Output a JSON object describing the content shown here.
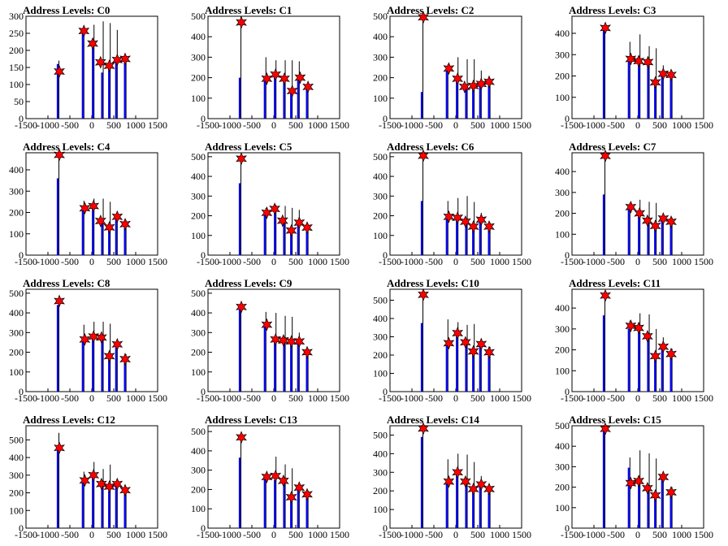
{
  "colors": {
    "total": "#000000",
    "selected": "#0000ff",
    "marker": "#ff0000",
    "frame": "#000000"
  },
  "xlim": [
    -1500,
    1500
  ],
  "x_ticks": [
    "-1500",
    "-1000",
    "-500",
    "0",
    "500",
    "1000",
    "1500"
  ],
  "chart_data": [
    {
      "type": "bar",
      "title": "Address Levels: C0",
      "ylim": [
        0,
        300
      ],
      "yticks": [
        0,
        50,
        100,
        150,
        200,
        250,
        300
      ],
      "x": [
        -750,
        -180,
        50,
        260,
        420,
        580,
        780
      ],
      "total": [
        170,
        270,
        275,
        285,
        280,
        260,
        180
      ],
      "selected": [
        160,
        260,
        210,
        135,
        150,
        175,
        170
      ],
      "peaks": [
        {
          "x": -740,
          "y": 138
        },
        {
          "x": -180,
          "y": 257
        },
        {
          "x": 20,
          "y": 220
        },
        {
          "x": 200,
          "y": 165
        },
        {
          "x": 400,
          "y": 155
        },
        {
          "x": 580,
          "y": 172
        },
        {
          "x": 760,
          "y": 175
        }
      ]
    },
    {
      "type": "bar",
      "title": "Address Levels: C1",
      "ylim": [
        0,
        500
      ],
      "yticks": [
        0,
        100,
        200,
        300,
        400,
        500
      ],
      "x": [
        -750,
        -180,
        50,
        260,
        420,
        580,
        780
      ],
      "total": [
        500,
        300,
        285,
        285,
        285,
        280,
        160
      ],
      "selected": [
        200,
        185,
        210,
        185,
        140,
        190,
        150
      ],
      "peaks": [
        {
          "x": -740,
          "y": 470
        },
        {
          "x": -160,
          "y": 195
        },
        {
          "x": 40,
          "y": 215
        },
        {
          "x": 240,
          "y": 195
        },
        {
          "x": 420,
          "y": 135
        },
        {
          "x": 600,
          "y": 200
        },
        {
          "x": 780,
          "y": 155
        }
      ]
    },
    {
      "type": "bar",
      "title": "Address Levels: C2",
      "ylim": [
        0,
        500
      ],
      "yticks": [
        0,
        100,
        200,
        300,
        400,
        500
      ],
      "x": [
        -750,
        -180,
        50,
        260,
        420,
        580,
        780
      ],
      "total": [
        510,
        265,
        300,
        290,
        290,
        235,
        180
      ],
      "selected": [
        130,
        240,
        190,
        150,
        155,
        170,
        175
      ],
      "peaks": [
        {
          "x": -740,
          "y": 495
        },
        {
          "x": -160,
          "y": 245
        },
        {
          "x": 40,
          "y": 195
        },
        {
          "x": 200,
          "y": 155
        },
        {
          "x": 400,
          "y": 160
        },
        {
          "x": 580,
          "y": 170
        },
        {
          "x": 760,
          "y": 180
        }
      ]
    },
    {
      "type": "bar",
      "title": "Address Levels: C3",
      "ylim": [
        0,
        480
      ],
      "yticks": [
        0,
        100,
        200,
        300,
        400
      ],
      "x": [
        -750,
        -180,
        50,
        260,
        420,
        580,
        780
      ],
      "total": [
        440,
        360,
        395,
        340,
        330,
        250,
        225
      ],
      "selected": [
        420,
        270,
        265,
        265,
        165,
        205,
        200
      ],
      "peaks": [
        {
          "x": -740,
          "y": 425
        },
        {
          "x": -160,
          "y": 280
        },
        {
          "x": 20,
          "y": 270
        },
        {
          "x": 230,
          "y": 265
        },
        {
          "x": 400,
          "y": 170
        },
        {
          "x": 580,
          "y": 210
        },
        {
          "x": 760,
          "y": 205
        }
      ]
    },
    {
      "type": "bar",
      "title": "Address Levels: C4",
      "ylim": [
        0,
        480
      ],
      "yticks": [
        0,
        100,
        200,
        300,
        400
      ],
      "x": [
        -750,
        -180,
        50,
        260,
        420,
        580,
        780
      ],
      "total": [
        480,
        255,
        265,
        265,
        250,
        205,
        165
      ],
      "selected": [
        360,
        220,
        225,
        155,
        130,
        175,
        140
      ],
      "peaks": [
        {
          "x": -740,
          "y": 470
        },
        {
          "x": -160,
          "y": 220
        },
        {
          "x": 40,
          "y": 230
        },
        {
          "x": 200,
          "y": 160
        },
        {
          "x": 400,
          "y": 130
        },
        {
          "x": 580,
          "y": 180
        },
        {
          "x": 760,
          "y": 145
        }
      ]
    },
    {
      "type": "bar",
      "title": "Address Levels: C5",
      "ylim": [
        0,
        520
      ],
      "yticks": [
        0,
        100,
        200,
        300,
        400,
        500
      ],
      "x": [
        -750,
        -180,
        50,
        260,
        420,
        580,
        780
      ],
      "total": [
        500,
        240,
        255,
        250,
        240,
        230,
        160
      ],
      "selected": [
        365,
        210,
        225,
        170,
        130,
        165,
        140
      ],
      "peaks": [
        {
          "x": -740,
          "y": 490
        },
        {
          "x": -160,
          "y": 215
        },
        {
          "x": 20,
          "y": 235
        },
        {
          "x": 200,
          "y": 175
        },
        {
          "x": 400,
          "y": 125
        },
        {
          "x": 580,
          "y": 165
        },
        {
          "x": 760,
          "y": 140
        }
      ]
    },
    {
      "type": "bar",
      "title": "Address Levels: C6",
      "ylim": [
        0,
        520
      ],
      "yticks": [
        0,
        100,
        200,
        300,
        400,
        500
      ],
      "x": [
        -750,
        -180,
        50,
        260,
        420,
        580,
        780
      ],
      "total": [
        520,
        275,
        290,
        300,
        270,
        215,
        165
      ],
      "selected": [
        275,
        190,
        185,
        170,
        140,
        175,
        140
      ],
      "peaks": [
        {
          "x": -740,
          "y": 505
        },
        {
          "x": -160,
          "y": 195
        },
        {
          "x": 40,
          "y": 190
        },
        {
          "x": 220,
          "y": 170
        },
        {
          "x": 400,
          "y": 145
        },
        {
          "x": 580,
          "y": 180
        },
        {
          "x": 760,
          "y": 145
        }
      ]
    },
    {
      "type": "bar",
      "title": "Address Levels: C7",
      "ylim": [
        0,
        490
      ],
      "yticks": [
        0,
        100,
        200,
        300,
        400
      ],
      "x": [
        -750,
        -180,
        50,
        260,
        420,
        580,
        780
      ],
      "total": [
        470,
        250,
        265,
        255,
        250,
        190,
        180
      ],
      "selected": [
        290,
        220,
        200,
        165,
        140,
        175,
        155
      ],
      "peaks": [
        {
          "x": -740,
          "y": 475
        },
        {
          "x": -160,
          "y": 230
        },
        {
          "x": 40,
          "y": 200
        },
        {
          "x": 220,
          "y": 165
        },
        {
          "x": 400,
          "y": 140
        },
        {
          "x": 580,
          "y": 175
        },
        {
          "x": 760,
          "y": 160
        }
      ]
    },
    {
      "type": "bar",
      "title": "Address Levels: C8",
      "ylim": [
        0,
        520
      ],
      "yticks": [
        0,
        100,
        200,
        300,
        400,
        500
      ],
      "x": [
        -750,
        -180,
        50,
        260,
        420,
        580,
        780
      ],
      "total": [
        480,
        340,
        355,
        355,
        345,
        250,
        190
      ],
      "selected": [
        440,
        255,
        275,
        270,
        170,
        225,
        165
      ],
      "peaks": [
        {
          "x": -740,
          "y": 460
        },
        {
          "x": -160,
          "y": 265
        },
        {
          "x": 40,
          "y": 280
        },
        {
          "x": 220,
          "y": 275
        },
        {
          "x": 400,
          "y": 180
        },
        {
          "x": 580,
          "y": 240
        },
        {
          "x": 760,
          "y": 165
        }
      ]
    },
    {
      "type": "bar",
      "title": "Address Levels: C9",
      "ylim": [
        0,
        520
      ],
      "yticks": [
        0,
        100,
        200,
        300,
        400,
        500
      ],
      "x": [
        -750,
        -180,
        50,
        260,
        420,
        580,
        780
      ],
      "total": [
        450,
        405,
        400,
        385,
        380,
        300,
        220
      ],
      "selected": [
        420,
        330,
        265,
        250,
        250,
        250,
        190
      ],
      "peaks": [
        {
          "x": -740,
          "y": 430
        },
        {
          "x": -160,
          "y": 340
        },
        {
          "x": 40,
          "y": 265
        },
        {
          "x": 220,
          "y": 260
        },
        {
          "x": 400,
          "y": 255
        },
        {
          "x": 580,
          "y": 255
        },
        {
          "x": 760,
          "y": 200
        }
      ]
    },
    {
      "type": "bar",
      "title": "Address Levels: C10",
      "ylim": [
        0,
        560
      ],
      "yticks": [
        0,
        100,
        200,
        300,
        400,
        500
      ],
      "x": [
        -750,
        -180,
        50,
        260,
        420,
        580,
        780
      ],
      "total": [
        520,
        395,
        380,
        365,
        370,
        280,
        245
      ],
      "selected": [
        375,
        255,
        310,
        275,
        205,
        260,
        215
      ],
      "peaks": [
        {
          "x": -740,
          "y": 530
        },
        {
          "x": -160,
          "y": 265
        },
        {
          "x": 40,
          "y": 320
        },
        {
          "x": 220,
          "y": 270
        },
        {
          "x": 400,
          "y": 220
        },
        {
          "x": 580,
          "y": 260
        },
        {
          "x": 760,
          "y": 215
        }
      ]
    },
    {
      "type": "bar",
      "title": "Address Levels: C11",
      "ylim": [
        0,
        490
      ],
      "yticks": [
        0,
        100,
        200,
        300,
        400
      ],
      "x": [
        -750,
        -180,
        50,
        260,
        420,
        580,
        780
      ],
      "total": [
        480,
        340,
        375,
        370,
        300,
        260,
        205
      ],
      "selected": [
        365,
        300,
        290,
        255,
        170,
        215,
        175
      ],
      "peaks": [
        {
          "x": -740,
          "y": 460
        },
        {
          "x": -160,
          "y": 315
        },
        {
          "x": 20,
          "y": 305
        },
        {
          "x": 220,
          "y": 265
        },
        {
          "x": 400,
          "y": 170
        },
        {
          "x": 580,
          "y": 215
        },
        {
          "x": 760,
          "y": 180
        }
      ]
    },
    {
      "type": "bar",
      "title": "Address Levels: C12",
      "ylim": [
        0,
        580
      ],
      "yticks": [
        0,
        100,
        200,
        300,
        400,
        500
      ],
      "x": [
        -750,
        -180,
        50,
        260,
        420,
        580,
        780
      ],
      "total": [
        540,
        320,
        375,
        335,
        360,
        270,
        220
      ],
      "selected": [
        465,
        265,
        290,
        245,
        210,
        250,
        210
      ],
      "peaks": [
        {
          "x": -740,
          "y": 455
        },
        {
          "x": -160,
          "y": 270
        },
        {
          "x": 40,
          "y": 300
        },
        {
          "x": 220,
          "y": 250
        },
        {
          "x": 400,
          "y": 235
        },
        {
          "x": 580,
          "y": 250
        },
        {
          "x": 760,
          "y": 215
        }
      ]
    },
    {
      "type": "bar",
      "title": "Address Levels: C13",
      "ylim": [
        0,
        530
      ],
      "yticks": [
        0,
        100,
        200,
        300,
        400,
        500
      ],
      "x": [
        -750,
        -180,
        50,
        260,
        420,
        580,
        780
      ],
      "total": [
        480,
        285,
        370,
        330,
        310,
        230,
        195
      ],
      "selected": [
        365,
        265,
        250,
        240,
        160,
        215,
        170
      ],
      "peaks": [
        {
          "x": -740,
          "y": 470
        },
        {
          "x": -160,
          "y": 265
        },
        {
          "x": 40,
          "y": 270
        },
        {
          "x": 220,
          "y": 245
        },
        {
          "x": 400,
          "y": 160
        },
        {
          "x": 580,
          "y": 210
        },
        {
          "x": 760,
          "y": 175
        }
      ]
    },
    {
      "type": "bar",
      "title": "Address Levels: C14",
      "ylim": [
        0,
        550
      ],
      "yticks": [
        0,
        100,
        200,
        300,
        400,
        500
      ],
      "x": [
        -750,
        -180,
        50,
        260,
        420,
        580,
        780
      ],
      "total": [
        530,
        370,
        400,
        395,
        355,
        280,
        210
      ],
      "selected": [
        490,
        245,
        290,
        255,
        215,
        235,
        210
      ],
      "peaks": [
        {
          "x": -740,
          "y": 535
        },
        {
          "x": -160,
          "y": 250
        },
        {
          "x": 40,
          "y": 300
        },
        {
          "x": 220,
          "y": 250
        },
        {
          "x": 400,
          "y": 210
        },
        {
          "x": 580,
          "y": 235
        },
        {
          "x": 760,
          "y": 210
        }
      ]
    },
    {
      "type": "bar",
      "title": "Address Levels: C15",
      "ylim": [
        0,
        500
      ],
      "yticks": [
        0,
        100,
        200,
        300,
        400,
        500
      ],
      "x": [
        -750,
        -180,
        50,
        260,
        420,
        580,
        780
      ],
      "total": [
        490,
        345,
        380,
        365,
        340,
        270,
        200
      ],
      "selected": [
        480,
        295,
        230,
        195,
        170,
        245,
        175
      ],
      "peaks": [
        {
          "x": -740,
          "y": 485
        },
        {
          "x": -160,
          "y": 220
        },
        {
          "x": 20,
          "y": 230
        },
        {
          "x": 220,
          "y": 195
        },
        {
          "x": 400,
          "y": 160
        },
        {
          "x": 580,
          "y": 250
        },
        {
          "x": 760,
          "y": 175
        }
      ]
    }
  ]
}
